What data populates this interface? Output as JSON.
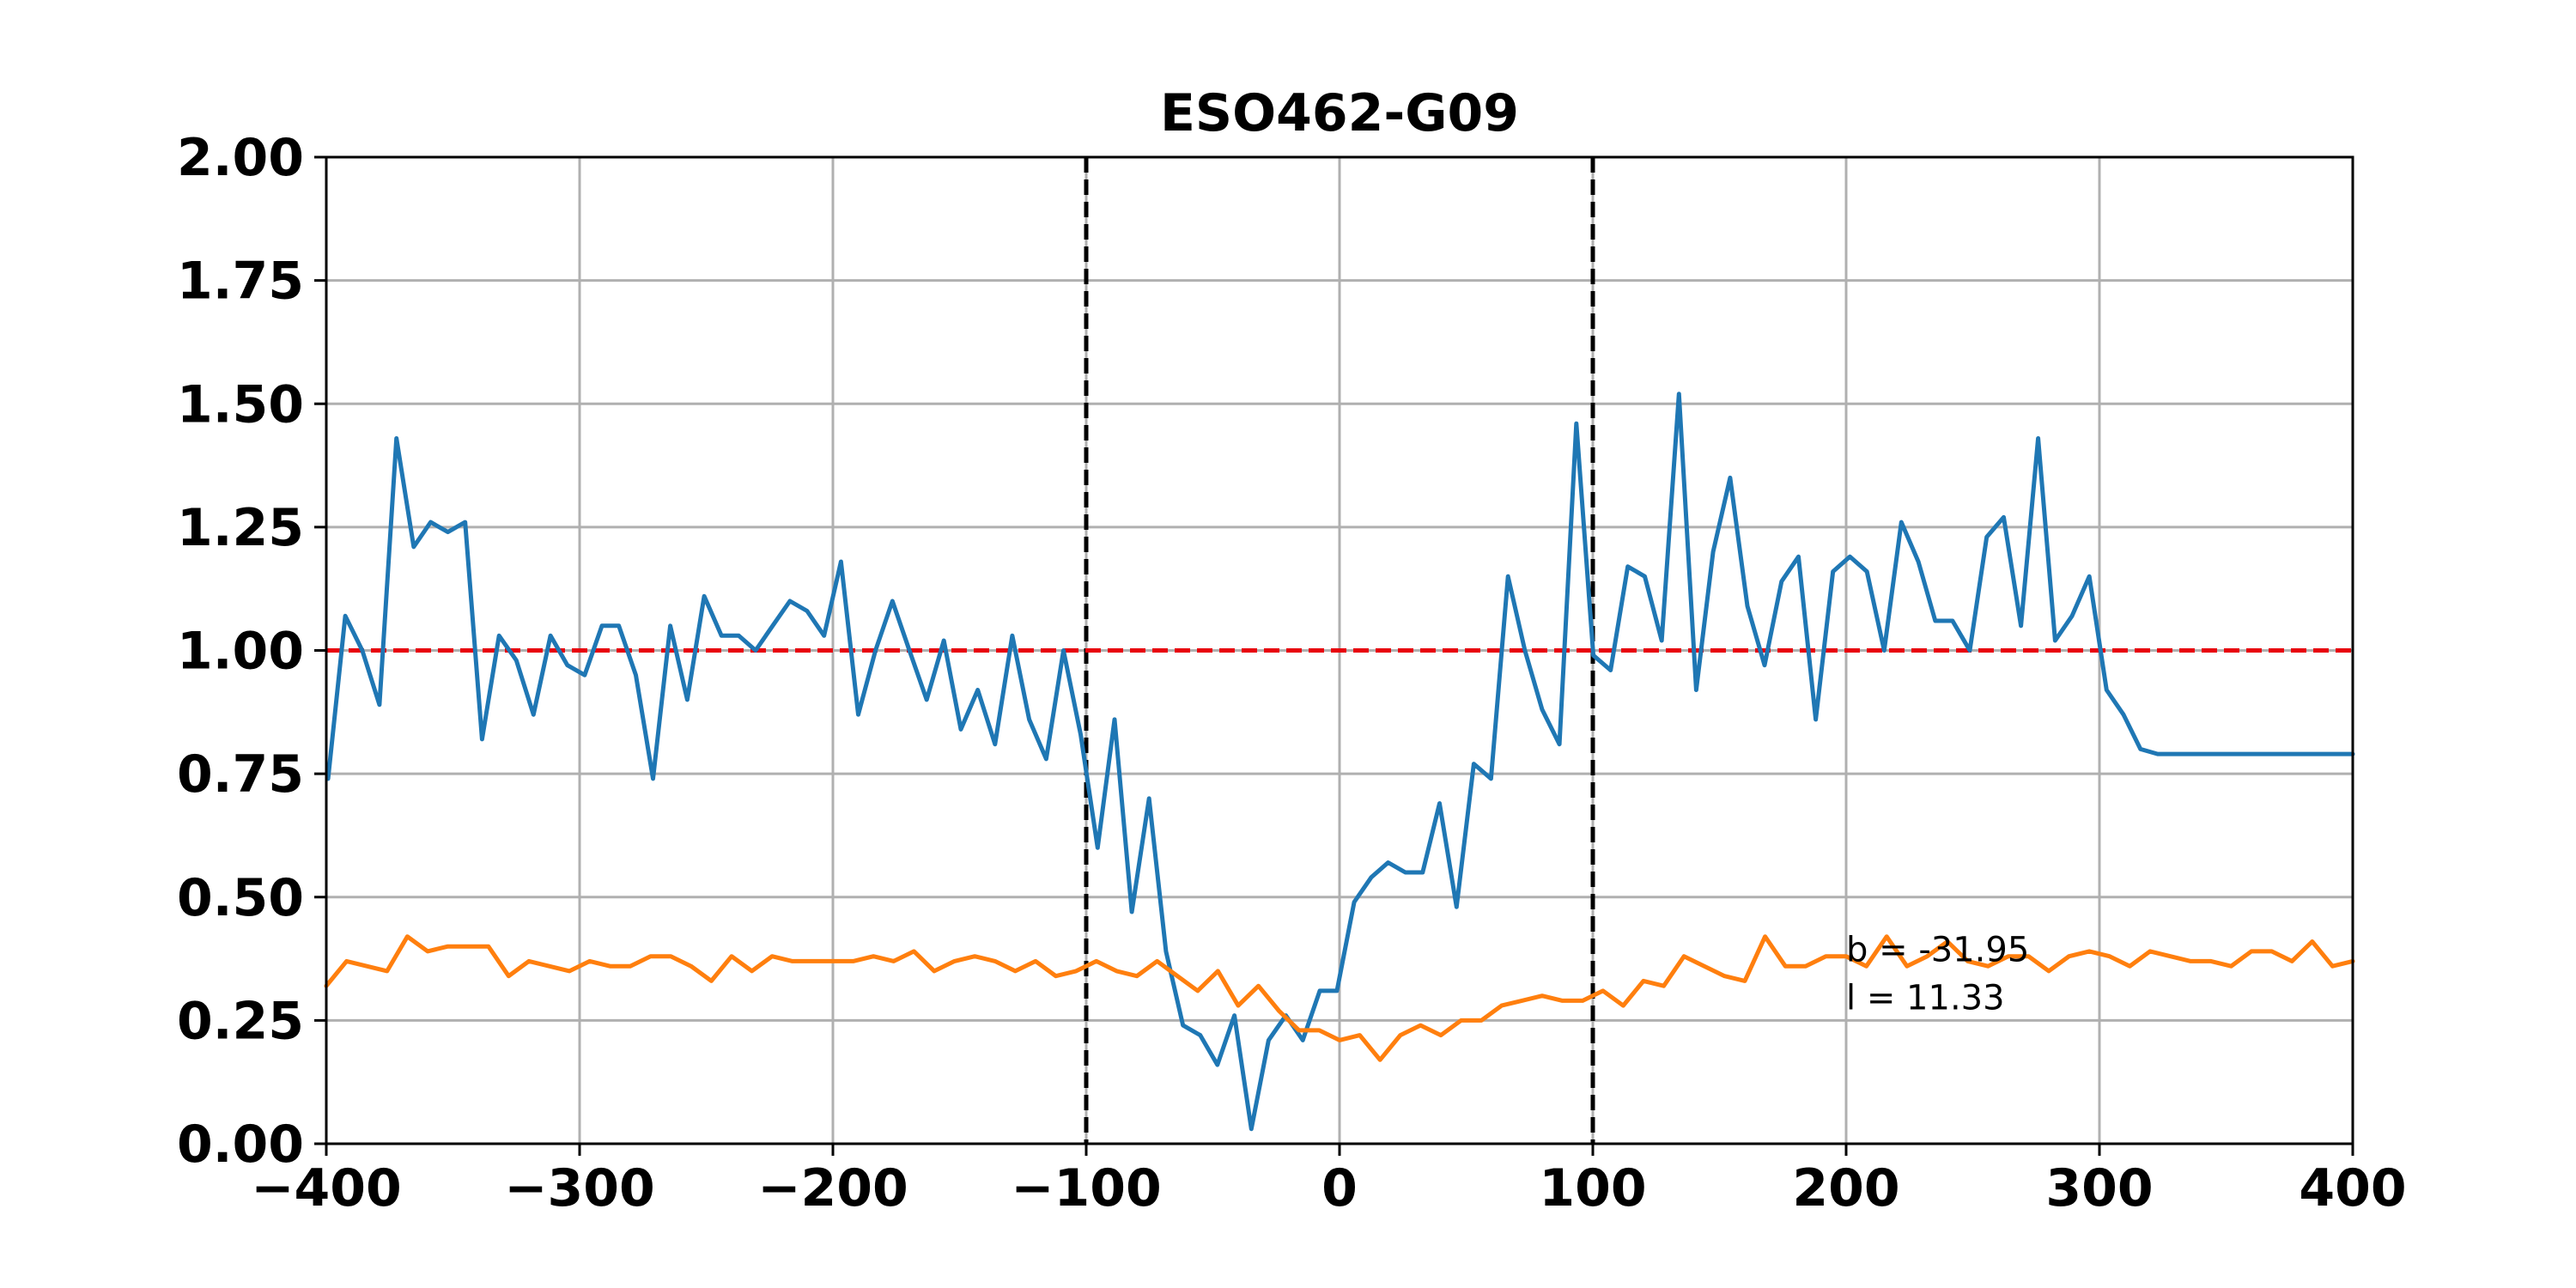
{
  "chart_data": {
    "type": "line",
    "title": "ESO462-G09",
    "xlabel": "",
    "ylabel": "",
    "xlim": [
      -400,
      400
    ],
    "ylim": [
      0,
      2
    ],
    "grid": true,
    "x_ticks": [
      -400,
      -300,
      -200,
      -100,
      0,
      100,
      200,
      300,
      400
    ],
    "x_tick_labels": [
      "−400",
      "−300",
      "−200",
      "−100",
      "0",
      "100",
      "200",
      "300",
      "400"
    ],
    "y_ticks": [
      0,
      0.25,
      0.5,
      0.75,
      1.0,
      1.25,
      1.5,
      1.75,
      2.0
    ],
    "y_tick_labels": [
      "0.00",
      "0.25",
      "0.50",
      "0.75",
      "1.00",
      "1.25",
      "1.50",
      "1.75",
      "2.00"
    ],
    "reference_lines": {
      "vertical": [
        -100,
        100
      ],
      "vertical_color": "#000000",
      "horizontal": [
        1.0
      ],
      "horizontal_color": "#e8000b"
    },
    "annotations": [
      "b = -31.95",
      "l = 11.33"
    ],
    "annotation_anchor": {
      "x": 200,
      "y": 0.37
    },
    "series": [
      {
        "color": "#1f77b4",
        "x": [
          -399.3,
          -392.5,
          -385.8,
          -379.0,
          -372.3,
          -365.5,
          -358.8,
          -352.0,
          -345.2,
          -338.5,
          -331.8,
          -325.0,
          -318.2,
          -311.5,
          -304.8,
          -298.0,
          -291.2,
          -284.5,
          -277.8,
          -271.0,
          -264.2,
          -257.5,
          -250.8,
          -244.0,
          -237.2,
          -230.5,
          -223.8,
          -217.0,
          -210.2,
          -203.5,
          -196.8,
          -190.0,
          -183.2,
          -176.5,
          -169.8,
          -163.0,
          -156.2,
          -149.5,
          -142.8,
          -136.0,
          -129.2,
          -122.5,
          -115.8,
          -109.0,
          -102.2,
          -95.5,
          -88.8,
          -82.0,
          -75.2,
          -68.5,
          -61.8,
          -55.0,
          -48.2,
          -41.5,
          -34.8,
          -28.0,
          -21.2,
          -14.5,
          -7.8,
          -1.0,
          5.8,
          12.5,
          19.2,
          26.0,
          32.8,
          39.5,
          46.2,
          53.0,
          59.8,
          66.5,
          73.2,
          80.0,
          86.8,
          93.5,
          100.2,
          107.0,
          113.8,
          120.5,
          127.2,
          134.0,
          140.8,
          147.5,
          154.2,
          161.0,
          167.8,
          174.5,
          181.2,
          188.0,
          194.8,
          201.5,
          208.2,
          215.0,
          221.8,
          228.5,
          235.2,
          242.0,
          248.8,
          255.5,
          262.2,
          269.0,
          275.8,
          282.5,
          289.2,
          296.0,
          302.8,
          309.5,
          316.2,
          323.0,
          329.8,
          336.5,
          343.2,
          350.0,
          356.8,
          363.5,
          370.2,
          377.0,
          383.8,
          390.5,
          397.2,
          400.0
        ],
        "y": [
          0.74,
          1.07,
          1.0,
          0.89,
          1.43,
          1.21,
          1.26,
          1.24,
          1.26,
          0.82,
          1.03,
          0.98,
          0.87,
          1.03,
          0.97,
          0.95,
          1.05,
          1.05,
          0.95,
          0.74,
          1.05,
          0.9,
          1.11,
          1.03,
          1.03,
          1.0,
          1.05,
          1.1,
          1.08,
          1.03,
          1.18,
          0.87,
          1.0,
          1.1,
          1.0,
          0.9,
          1.02,
          0.84,
          0.92,
          0.81,
          1.03,
          0.86,
          0.78,
          1.0,
          0.83,
          0.6,
          0.86,
          0.47,
          0.7,
          0.39,
          0.24,
          0.22,
          0.16,
          0.26,
          0.03,
          0.21,
          0.26,
          0.21,
          0.31,
          0.31,
          0.49,
          0.54,
          0.57,
          0.55,
          0.55,
          0.69,
          0.48,
          0.77,
          0.74,
          1.15,
          1.0,
          0.88,
          0.81,
          1.46,
          0.99,
          0.96,
          1.17,
          1.15,
          1.02,
          1.52,
          0.92,
          1.2,
          1.35,
          1.09,
          0.97,
          1.14,
          1.19,
          0.86,
          1.16,
          1.19,
          1.16,
          1.0,
          1.26,
          1.18,
          1.06,
          1.06,
          1.0,
          1.23,
          1.27,
          1.05,
          1.43,
          1.02,
          1.07,
          1.15,
          0.92,
          0.87,
          0.8,
          0.79,
          0.79,
          0.79,
          0.79,
          0.79,
          0.79,
          0.79,
          0.79,
          0.79,
          0.79,
          0.79,
          0.79,
          0.79
        ]
      },
      {
        "color": "#ff7f0e",
        "x": [
          -400,
          -392,
          -384,
          -376,
          -368,
          -360,
          -352,
          -344,
          -336,
          -328,
          -320,
          -312,
          -304,
          -296,
          -288,
          -280,
          -272,
          -264,
          -256,
          -248,
          -240,
          -232,
          -224,
          -216,
          -208,
          -200,
          -192,
          -184,
          -176,
          -168,
          -160,
          -152,
          -144,
          -136,
          -128,
          -120,
          -112,
          -104,
          -96,
          -88,
          -80,
          -72,
          -64,
          -56,
          -48,
          -40,
          -32,
          -24,
          -16,
          -8,
          0,
          8,
          16,
          24,
          32,
          40,
          48,
          56,
          64,
          72,
          80,
          88,
          96,
          104,
          112,
          120,
          128,
          136,
          144,
          152,
          160,
          168,
          176,
          184,
          192,
          200,
          208,
          216,
          224,
          232,
          240,
          248,
          256,
          264,
          272,
          280,
          288,
          296,
          304,
          312,
          320,
          328,
          336,
          344,
          352,
          360,
          368,
          376,
          384,
          392,
          400
        ],
        "y": [
          0.32,
          0.37,
          0.36,
          0.35,
          0.42,
          0.39,
          0.4,
          0.4,
          0.4,
          0.34,
          0.37,
          0.36,
          0.35,
          0.37,
          0.36,
          0.36,
          0.38,
          0.38,
          0.36,
          0.33,
          0.38,
          0.35,
          0.38,
          0.37,
          0.37,
          0.37,
          0.37,
          0.38,
          0.37,
          0.39,
          0.35,
          0.37,
          0.38,
          0.37,
          0.35,
          0.37,
          0.34,
          0.35,
          0.37,
          0.35,
          0.34,
          0.37,
          0.34,
          0.31,
          0.35,
          0.28,
          0.32,
          0.27,
          0.23,
          0.23,
          0.21,
          0.22,
          0.17,
          0.22,
          0.24,
          0.22,
          0.25,
          0.25,
          0.28,
          0.29,
          0.3,
          0.29,
          0.29,
          0.31,
          0.28,
          0.33,
          0.32,
          0.38,
          0.36,
          0.34,
          0.33,
          0.42,
          0.36,
          0.36,
          0.38,
          0.38,
          0.36,
          0.42,
          0.36,
          0.38,
          0.41,
          0.37,
          0.36,
          0.38,
          0.38,
          0.35,
          0.38,
          0.39,
          0.38,
          0.36,
          0.39,
          0.38,
          0.37,
          0.37,
          0.36,
          0.39,
          0.39,
          0.37,
          0.41,
          0.36,
          0.37
        ]
      }
    ]
  }
}
